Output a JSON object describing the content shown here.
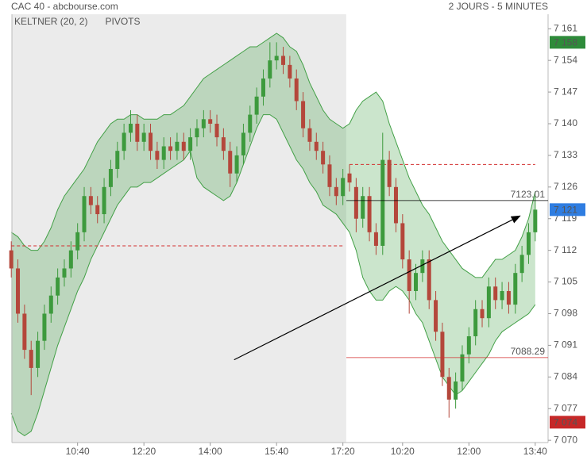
{
  "chart_data": {
    "type": "candlestick",
    "title": "CAC 40 - abcbourse.com",
    "subtitle": "2 JOURS - 5 MINUTES",
    "legend": [
      {
        "name": "KELTNER (20, 2)",
        "color": "#43a047"
      },
      {
        "name": "PIVOTS",
        "color": "#555555"
      }
    ],
    "categories": [
      null,
      null,
      null,
      null,
      null,
      null,
      null,
      null,
      null,
      null,
      "10:40",
      null,
      null,
      null,
      null,
      null,
      null,
      null,
      null,
      null,
      "12:20",
      null,
      null,
      null,
      null,
      null,
      null,
      null,
      null,
      null,
      "14:00",
      null,
      null,
      null,
      null,
      null,
      null,
      null,
      null,
      null,
      "15:40",
      null,
      null,
      null,
      null,
      null,
      null,
      null,
      null,
      null,
      "17:20",
      null,
      null,
      null,
      null,
      null,
      null,
      null,
      null,
      "10:20",
      null,
      null,
      null,
      null,
      null,
      null,
      null,
      null,
      null,
      "12:00",
      null,
      null,
      null,
      null,
      null,
      null,
      null,
      null,
      null,
      "13:40"
    ],
    "open": [
      7112,
      7108,
      7098,
      7090,
      7086,
      7092,
      7098,
      7102,
      7106,
      7108,
      7112,
      7116,
      7124,
      7122,
      7120,
      7126,
      7130,
      7134,
      7138,
      7140,
      7136,
      7138,
      7134,
      7132,
      7135,
      7134,
      7136,
      7134,
      7137,
      7139,
      7141,
      7140,
      7137,
      7134,
      7129,
      7133,
      7138,
      7142,
      7146,
      7150,
      7154,
      7155,
      7153,
      7150,
      7145,
      7139,
      7136,
      7134,
      7131,
      7126,
      7124,
      7129,
      7126,
      7119,
      7124,
      7116,
      7113,
      7132,
      7126,
      7118,
      7110,
      7103,
      7107,
      7110,
      7101,
      7094,
      7084,
      7079,
      7083,
      7089,
      7093,
      7099,
      7097,
      7104,
      7101,
      7103,
      7100,
      7107,
      7111,
      7116
    ],
    "high": [
      7114,
      7110,
      7100,
      7092,
      7094,
      7100,
      7104,
      7108,
      7110,
      7114,
      7118,
      7126,
      7126,
      7124,
      7128,
      7132,
      7136,
      7140,
      7143,
      7142,
      7140,
      7140,
      7136,
      7137,
      7137,
      7138,
      7138,
      7139,
      7141,
      7143,
      7143,
      7142,
      7139,
      7136,
      7135,
      7140,
      7144,
      7148,
      7152,
      7158,
      7158,
      7157,
      7155,
      7152,
      7147,
      7141,
      7138,
      7136,
      7133,
      7128,
      7130,
      7131,
      7128,
      7126,
      7126,
      7118,
      7138,
      7134,
      7128,
      7120,
      7112,
      7109,
      7112,
      7112,
      7103,
      7096,
      7086,
      7085,
      7091,
      7095,
      7101,
      7101,
      7106,
      7106,
      7105,
      7105,
      7109,
      7113,
      7118,
      7124
    ],
    "low": [
      7106,
      7096,
      7088,
      7080,
      7084,
      7090,
      7096,
      7100,
      7104,
      7106,
      7110,
      7114,
      7120,
      7118,
      7118,
      7124,
      7128,
      7132,
      7136,
      7134,
      7134,
      7132,
      7130,
      7130,
      7132,
      7132,
      7132,
      7132,
      7135,
      7137,
      7138,
      7135,
      7132,
      7126,
      7127,
      7131,
      7136,
      7140,
      7144,
      7148,
      7152,
      7151,
      7148,
      7143,
      7137,
      7134,
      7132,
      7129,
      7124,
      7122,
      7122,
      7125,
      7116,
      7117,
      7114,
      7111,
      7111,
      7124,
      7116,
      7108,
      7098,
      7101,
      7105,
      7099,
      7092,
      7082,
      7075,
      7077,
      7081,
      7087,
      7091,
      7095,
      7095,
      7099,
      7099,
      7098,
      7098,
      7105,
      7109,
      7114
    ],
    "close": [
      7108,
      7098,
      7090,
      7086,
      7092,
      7098,
      7102,
      7106,
      7108,
      7112,
      7116,
      7124,
      7122,
      7120,
      7126,
      7130,
      7134,
      7138,
      7140,
      7136,
      7138,
      7134,
      7132,
      7135,
      7134,
      7136,
      7134,
      7137,
      7139,
      7141,
      7140,
      7137,
      7134,
      7129,
      7133,
      7138,
      7142,
      7146,
      7150,
      7154,
      7155,
      7153,
      7150,
      7145,
      7139,
      7136,
      7134,
      7131,
      7126,
      7124,
      7128,
      7127,
      7119,
      7124,
      7116,
      7113,
      7132,
      7126,
      7118,
      7110,
      7103,
      7107,
      7110,
      7101,
      7094,
      7084,
      7079,
      7083,
      7089,
      7093,
      7099,
      7097,
      7104,
      7101,
      7103,
      7100,
      7107,
      7111,
      7116,
      7121
    ],
    "keltner": {
      "color": "#43a047",
      "upper": [
        7116,
        7115,
        7113,
        7112,
        7112,
        7114,
        7117,
        7121,
        7124,
        7126,
        7128,
        7130,
        7133,
        7136,
        7138,
        7140,
        7141,
        7141,
        7142,
        7142,
        7141,
        7141,
        7141,
        7142,
        7142,
        7143,
        7144,
        7146,
        7148,
        7150,
        7151,
        7152,
        7153,
        7154,
        7155,
        7156,
        7157,
        7157,
        7158,
        7159,
        7160,
        7159,
        7157,
        7156,
        7153,
        7149,
        7146,
        7143,
        7141,
        7140,
        7139,
        7140,
        7143,
        7145,
        7146,
        7147,
        7145,
        7140,
        7136,
        7132,
        7128,
        7125,
        7122,
        7120,
        7117,
        7114,
        7112,
        7110,
        7108,
        7107,
        7106,
        7106,
        7108,
        7110,
        7110,
        7111,
        7112,
        7115,
        7119,
        7125
      ],
      "lower": [
        7076,
        7072,
        7071,
        7072,
        7076,
        7081,
        7086,
        7091,
        7095,
        7099,
        7103,
        7106,
        7110,
        7113,
        7116,
        7119,
        7122,
        7124,
        7126,
        7126,
        7127,
        7127,
        7128,
        7129,
        7130,
        7131,
        7132,
        7134,
        7128,
        7126,
        7125,
        7124,
        7123,
        7124,
        7127,
        7131,
        7135,
        7139,
        7142,
        7142,
        7141,
        7138,
        7135,
        7132,
        7130,
        7127,
        7125,
        7122,
        7121,
        7120,
        7118,
        7116,
        7112,
        7106,
        7103,
        7101,
        7101,
        7103,
        7104,
        7103,
        7101,
        7098,
        7096,
        7092,
        7088,
        7084,
        7082,
        7080,
        7081,
        7083,
        7085,
        7087,
        7089,
        7092,
        7094,
        7095,
        7096,
        7097,
        7098,
        7100
      ]
    },
    "pivots": [
      {
        "value": 7113,
        "x": [
          0,
          50
        ],
        "color": "#d32f2f"
      },
      {
        "value": 7131,
        "x": [
          51,
          79
        ],
        "color": "#d32f2f"
      }
    ],
    "levels": [
      {
        "value": 7123.01,
        "color": "#000000"
      },
      {
        "value": 7088.29,
        "color": "#d32f2f"
      }
    ],
    "trendline": {
      "x": [
        33.6,
        76.7
      ],
      "y": [
        7087.8,
        7119.6
      ],
      "color": "#000000"
    },
    "price_tags": [
      {
        "value": 7158,
        "label": "7 158",
        "color": "#2e8b3a"
      },
      {
        "value": 7121,
        "label": "7 121",
        "color": "#2f7de1"
      },
      {
        "value": 7074,
        "label": "7 074",
        "color": "#c62828"
      }
    ],
    "up_color": "#3d9a3d",
    "down_color": "#b4473b",
    "ylim": [
      7069.5,
      7164.2
    ],
    "yticks": [
      {
        "value": 7161,
        "label": "7 161"
      },
      {
        "value": 7154,
        "label": "7 154"
      },
      {
        "value": 7147,
        "label": "7 147"
      },
      {
        "value": 7140,
        "label": "7 140"
      },
      {
        "value": 7133,
        "label": "7 133"
      },
      {
        "value": 7126,
        "label": "7 126"
      },
      {
        "value": 7119,
        "label": "7 119"
      },
      {
        "value": 7112,
        "label": "7 112"
      },
      {
        "value": 7105,
        "label": "7 105"
      },
      {
        "value": 7098,
        "label": "7 098"
      },
      {
        "value": 7091,
        "label": "7 091"
      },
      {
        "value": 7084,
        "label": "7 084"
      },
      {
        "value": 7077,
        "label": "7 077"
      },
      {
        "value": 7070,
        "label": "7 070"
      }
    ],
    "grid": false
  }
}
